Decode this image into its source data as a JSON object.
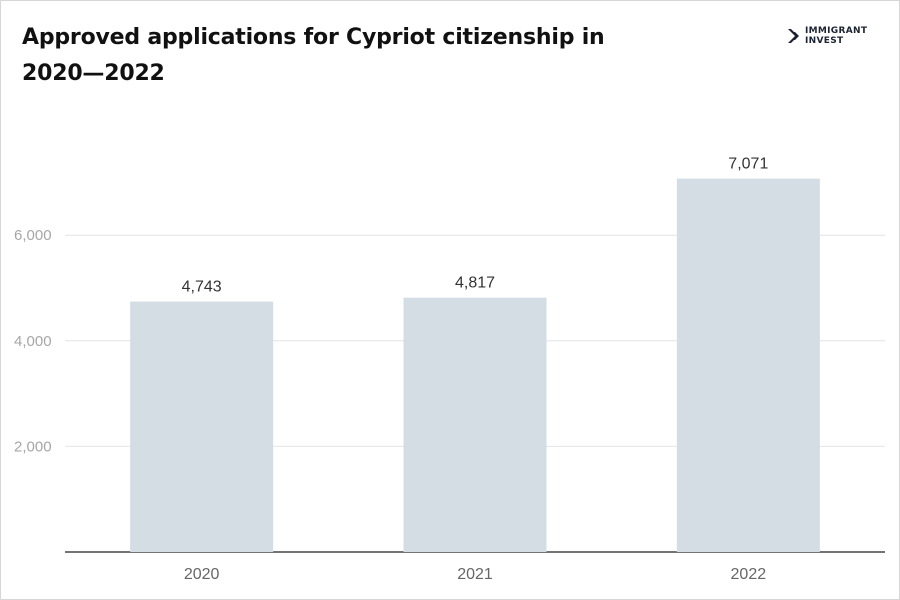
{
  "header": {
    "title": "Approved applications for Cypriot citizenship in 2020—2022"
  },
  "logo": {
    "line1": "IMMIGRANT",
    "line2": "INVEST",
    "icon": "chevron-logo-icon"
  },
  "colors": {
    "bar": "#d3dde3",
    "title": "#111111",
    "axis_text": "#a6a6a6",
    "grid": "#e4e4e4"
  },
  "chart_data": {
    "type": "bar",
    "title": "Approved applications for Cypriot citizenship in 2020—2022",
    "xlabel": "",
    "ylabel": "",
    "categories": [
      "2020",
      "2021",
      "2022"
    ],
    "values": [
      4743,
      4817,
      7071
    ],
    "value_labels": [
      "4,743",
      "4,817",
      "7,071"
    ],
    "yticks": [
      2000,
      4000,
      6000
    ],
    "ytick_labels": [
      "2,000",
      "4,000",
      "6,000"
    ],
    "ylim": [
      0,
      7800
    ],
    "grid": true,
    "legend": "none"
  }
}
